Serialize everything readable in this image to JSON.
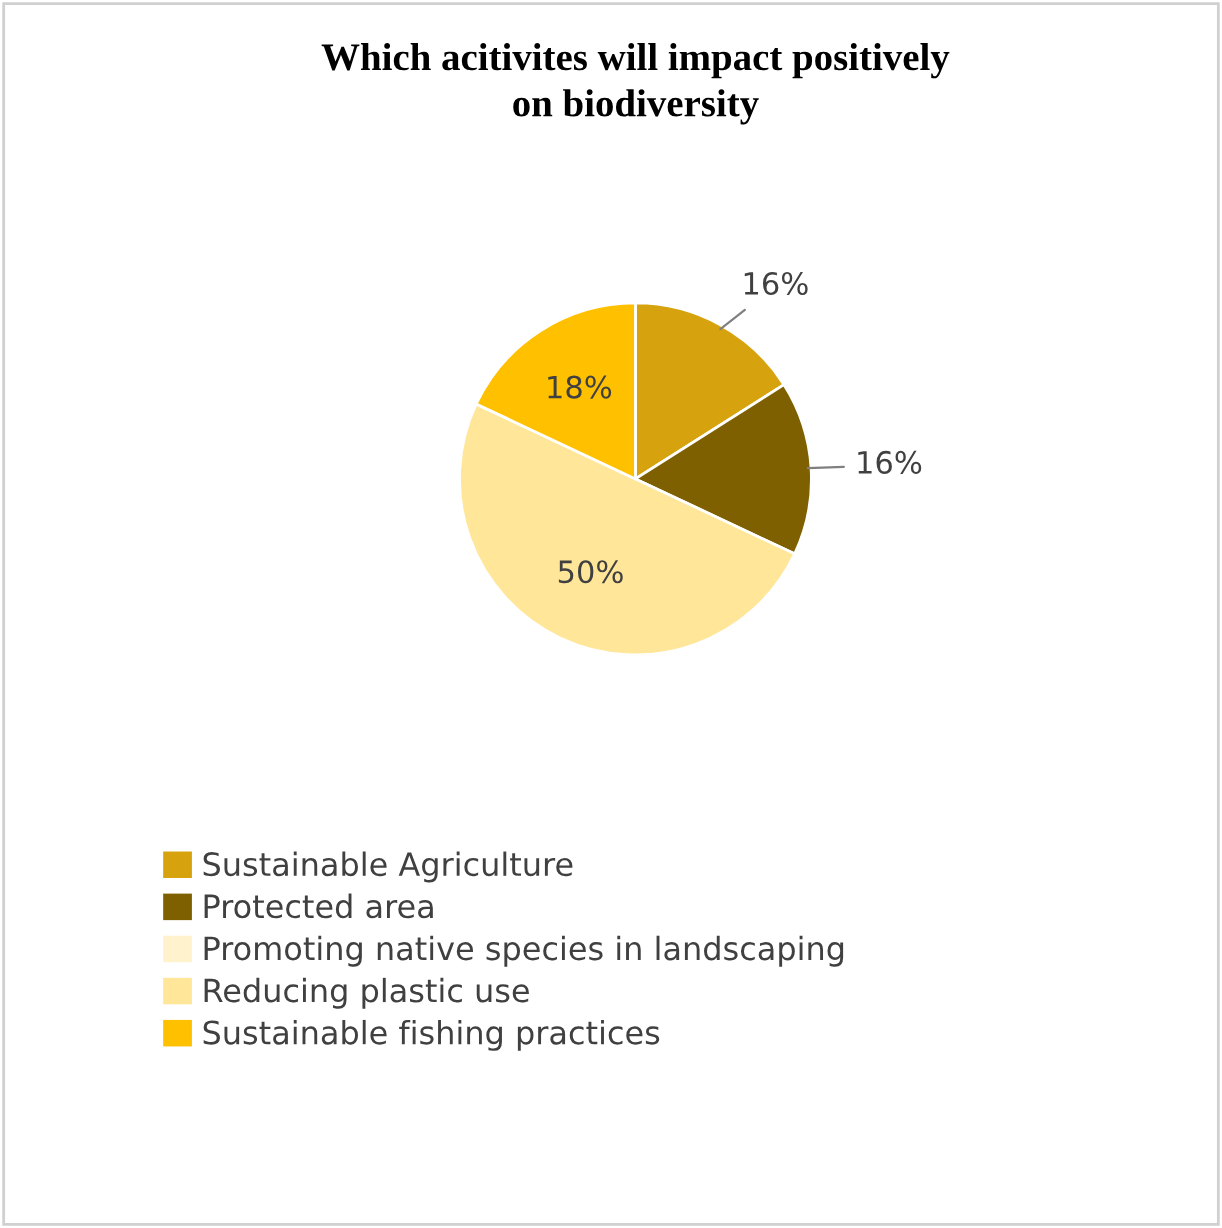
{
  "chart_data": {
    "type": "pie",
    "title": "Which acitivites will impact positively\non biodiversity",
    "categories": [
      "Sustainable Agriculture",
      "Protected area",
      "Promoting native species in landscaping",
      "Reducing plastic use",
      "Sustainable fishing practices"
    ],
    "values": [
      16,
      16,
      0,
      50,
      18
    ],
    "colors": [
      "#d6a20e",
      "#7f6000",
      "#fff2cc",
      "#ffe699",
      "#ffc000"
    ],
    "value_labels": [
      "16%",
      "16%",
      null,
      "50%",
      "18%"
    ],
    "legend": "bottom"
  }
}
